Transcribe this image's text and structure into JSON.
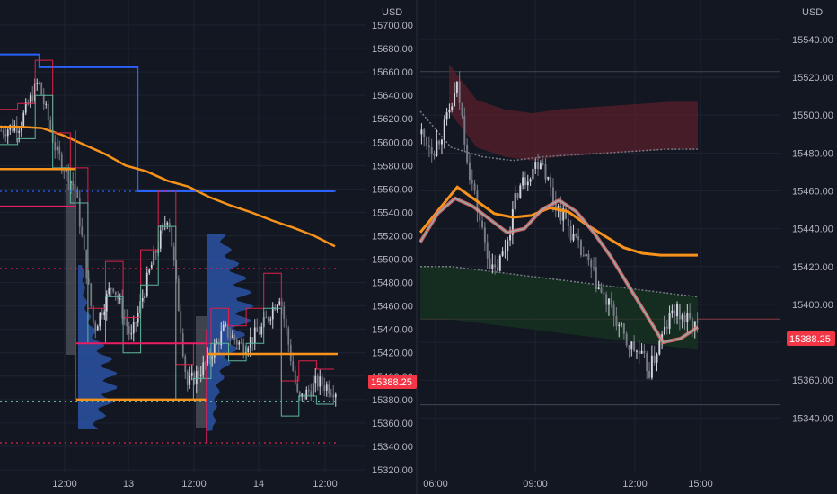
{
  "colors": {
    "background": "#131722",
    "grid": "#1f2330",
    "axis_text": "#b2b5be",
    "bull": "#d1d4dc",
    "bear": "#787b86",
    "orange": "#f7931a",
    "blue": "#2962ff",
    "red": "#e0204a",
    "teal": "#5fb59b",
    "price_tag": "#f23645",
    "profile": "#2e5bb6"
  },
  "currency_label": "USD",
  "price_tag": "15388.25",
  "chart_data": [
    {
      "type": "line",
      "panel": "left",
      "currency": "USD",
      "ylim": [
        15310,
        15710
      ],
      "y_ticks": [
        "15700.00",
        "15680.00",
        "15660.00",
        "15640.00",
        "15620.00",
        "15600.00",
        "15580.00",
        "15560.00",
        "15540.00",
        "15520.00",
        "15500.00",
        "15480.00",
        "15460.00",
        "15440.00",
        "15420.00",
        "15400.00",
        "15380.00",
        "15360.00",
        "15340.00",
        "15320.00"
      ],
      "x_ticks": [
        "12:00",
        "13",
        "12:00",
        "14",
        "12:00"
      ],
      "series": [
        {
          "style": "orange-ma",
          "values": [
            15613,
            15613,
            15612,
            15606,
            15598,
            15590,
            15580,
            15575,
            15567,
            15562,
            15553,
            15546,
            15540,
            15533,
            15527,
            15520,
            15511
          ]
        },
        {
          "style": "blue-step",
          "values": [
            15675,
            15675,
            15664,
            15664,
            15664,
            15664,
            15664,
            15558,
            15558,
            15558,
            15558,
            15558,
            15558,
            15558,
            15558,
            15558,
            15558
          ]
        },
        {
          "style": "price",
          "values": [
            15610,
            15615,
            15652,
            15590,
            15560,
            15440,
            15480,
            15432,
            15490,
            15540,
            15392,
            15410,
            15440,
            15425,
            15440,
            15470,
            15378,
            15395,
            15388
          ]
        }
      ],
      "levels": [
        {
          "price": 15558,
          "style": "blue-dotted"
        },
        {
          "price": 15492,
          "style": "red-dotted"
        },
        {
          "price": 15378,
          "style": "teal-dotted"
        },
        {
          "price": 15343,
          "style": "red-dotted"
        },
        {
          "price": 15577,
          "style": "orange-solid"
        },
        {
          "price": 15380,
          "style": "orange-solid"
        },
        {
          "price": 15419,
          "style": "orange-solid"
        }
      ]
    },
    {
      "type": "line",
      "panel": "right",
      "currency": "USD",
      "ylim": [
        15325,
        15548
      ],
      "y_ticks": [
        "15540.00",
        "15520.00",
        "15500.00",
        "15480.00",
        "15460.00",
        "15440.00",
        "15420.00",
        "15400.00",
        "15380.00",
        "15360.00",
        "15340.00"
      ],
      "x_ticks": [
        "06:00",
        "09:00",
        "12:00",
        "15:00"
      ],
      "last_price": 15388.25,
      "series": [
        {
          "style": "price",
          "values": [
            15490,
            15482,
            15495,
            15515,
            15470,
            15440,
            15415,
            15430,
            15460,
            15470,
            15478,
            15455,
            15445,
            15430,
            15420,
            15405,
            15395,
            15380,
            15375,
            15365,
            15382,
            15397,
            15392,
            15388
          ]
        },
        {
          "style": "vwap",
          "values": [
            15433,
            15448,
            15456,
            15452,
            15445,
            15438,
            15440,
            15450,
            15455,
            15449,
            15438,
            15425,
            15410,
            15395,
            15380,
            15382,
            15388
          ]
        },
        {
          "style": "orange-ma",
          "values": [
            15438,
            15450,
            15462,
            15455,
            15448,
            15446,
            15447,
            15451,
            15449,
            15442,
            15436,
            15430,
            15427,
            15426,
            15426,
            15426
          ]
        },
        {
          "style": "upper-band",
          "values": [
            15527,
            15508,
            15503,
            15501,
            15503,
            15504,
            15505,
            15506,
            15507,
            15507
          ]
        },
        {
          "style": "lower-band",
          "values": [
            15420,
            15420,
            15418,
            15416,
            15414,
            15412,
            15410,
            15408,
            15406,
            15404
          ]
        }
      ]
    }
  ]
}
